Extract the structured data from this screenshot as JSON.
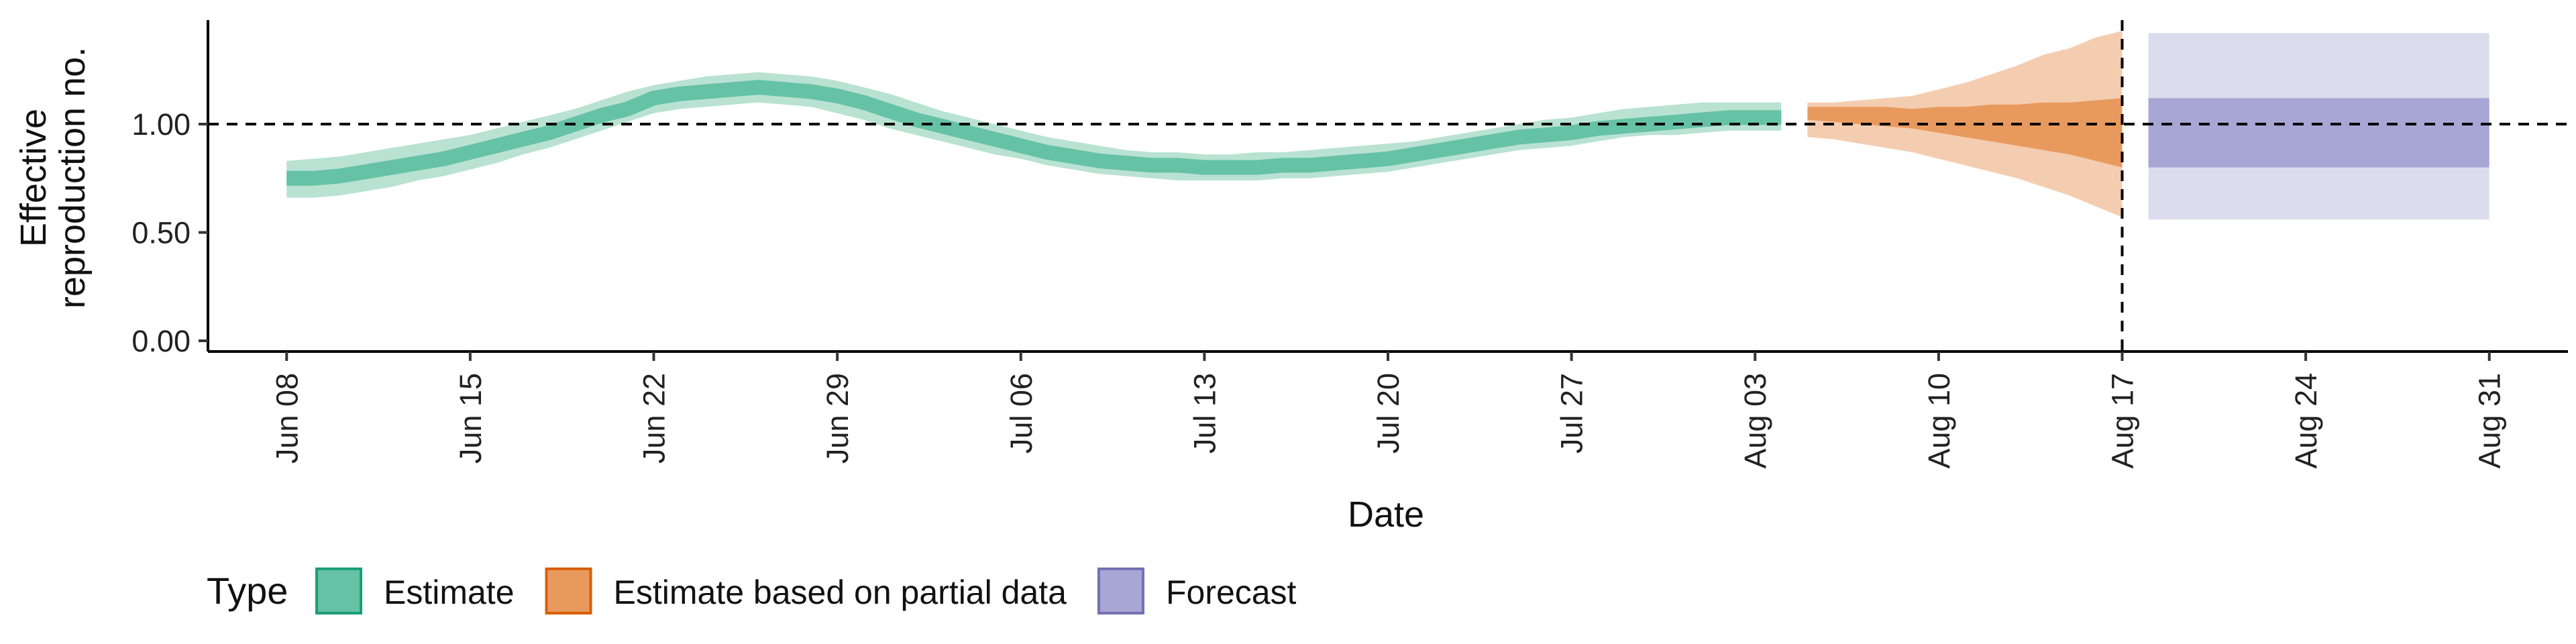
{
  "chart_data": {
    "type": "area",
    "xlabel": "Date",
    "ylabel_lines": [
      "Effective",
      "reproduction no."
    ],
    "ylim": [
      0,
      1.5
    ],
    "yticks": [
      0.0,
      0.5,
      1.0
    ],
    "ytick_labels": [
      "0.00",
      "0.50",
      "1.00"
    ],
    "xlim": [
      "2020-06-05",
      "2020-09-03"
    ],
    "xticks": [
      "2020-06-08",
      "2020-06-15",
      "2020-06-22",
      "2020-06-29",
      "2020-07-06",
      "2020-07-13",
      "2020-07-20",
      "2020-07-27",
      "2020-08-03",
      "2020-08-10",
      "2020-08-17",
      "2020-08-24",
      "2020-08-31"
    ],
    "xtick_labels": [
      "Jun 08",
      "Jun 15",
      "Jun 22",
      "Jun 29",
      "Jul 06",
      "Jul 13",
      "Jul 20",
      "Jul 27",
      "Aug 03",
      "Aug 10",
      "Aug 17",
      "Aug 24",
      "Aug 31"
    ],
    "hline": 1.0,
    "vline": "2020-08-17",
    "legend": {
      "title": "Type",
      "position": "bottom-left",
      "entries": [
        {
          "label": "Estimate",
          "fill": "#66c2a5",
          "stroke": "#1b9e77"
        },
        {
          "label": "Estimate based on partial data",
          "fill": "#e89a5e",
          "stroke": "#d95f02"
        },
        {
          "label": "Forecast",
          "fill": "#a8a6d4",
          "stroke": "#7570b3"
        }
      ]
    },
    "series": [
      {
        "type": "Estimate",
        "color_outer": "#b9e2d3",
        "color_inner": "#66c2a5",
        "color_median": "#66c2a5",
        "x": [
          "2020-06-08",
          "2020-06-09",
          "2020-06-10",
          "2020-06-11",
          "2020-06-12",
          "2020-06-13",
          "2020-06-14",
          "2020-06-15",
          "2020-06-16",
          "2020-06-17",
          "2020-06-18",
          "2020-06-19",
          "2020-06-20",
          "2020-06-21",
          "2020-06-22",
          "2020-06-23",
          "2020-06-24",
          "2020-06-25",
          "2020-06-26",
          "2020-06-27",
          "2020-06-28",
          "2020-06-29",
          "2020-06-30",
          "2020-07-01",
          "2020-07-02",
          "2020-07-03",
          "2020-07-04",
          "2020-07-05",
          "2020-07-06",
          "2020-07-07",
          "2020-07-08",
          "2020-07-09",
          "2020-07-10",
          "2020-07-11",
          "2020-07-12",
          "2020-07-13",
          "2020-07-14",
          "2020-07-15",
          "2020-07-16",
          "2020-07-17",
          "2020-07-18",
          "2020-07-19",
          "2020-07-20",
          "2020-07-21",
          "2020-07-22",
          "2020-07-23",
          "2020-07-24",
          "2020-07-25",
          "2020-07-26",
          "2020-07-27",
          "2020-07-28",
          "2020-07-29",
          "2020-07-30",
          "2020-07-31",
          "2020-08-01",
          "2020-08-02",
          "2020-08-03",
          "2020-08-04"
        ],
        "median": [
          0.75,
          0.75,
          0.76,
          0.78,
          0.8,
          0.82,
          0.84,
          0.87,
          0.9,
          0.93,
          0.96,
          1.0,
          1.04,
          1.07,
          1.12,
          1.14,
          1.15,
          1.16,
          1.17,
          1.16,
          1.15,
          1.13,
          1.1,
          1.06,
          1.02,
          0.99,
          0.96,
          0.93,
          0.9,
          0.87,
          0.85,
          0.83,
          0.82,
          0.81,
          0.81,
          0.8,
          0.8,
          0.8,
          0.81,
          0.81,
          0.82,
          0.83,
          0.84,
          0.86,
          0.88,
          0.9,
          0.92,
          0.94,
          0.95,
          0.96,
          0.98,
          0.99,
          1.0,
          1.01,
          1.02,
          1.03,
          1.03,
          1.03
        ],
        "lower90": [
          0.66,
          0.66,
          0.67,
          0.69,
          0.71,
          0.74,
          0.76,
          0.79,
          0.82,
          0.86,
          0.89,
          0.93,
          0.97,
          1.01,
          1.05,
          1.07,
          1.08,
          1.09,
          1.1,
          1.09,
          1.08,
          1.05,
          1.02,
          0.98,
          0.95,
          0.92,
          0.89,
          0.86,
          0.84,
          0.81,
          0.79,
          0.77,
          0.76,
          0.75,
          0.74,
          0.74,
          0.74,
          0.74,
          0.75,
          0.75,
          0.76,
          0.77,
          0.78,
          0.8,
          0.82,
          0.84,
          0.86,
          0.88,
          0.89,
          0.9,
          0.92,
          0.94,
          0.95,
          0.95,
          0.96,
          0.97,
          0.97,
          0.97
        ],
        "upper90": [
          0.83,
          0.84,
          0.85,
          0.87,
          0.89,
          0.91,
          0.93,
          0.95,
          0.98,
          1.01,
          1.04,
          1.07,
          1.11,
          1.15,
          1.18,
          1.2,
          1.22,
          1.23,
          1.24,
          1.23,
          1.22,
          1.2,
          1.17,
          1.14,
          1.1,
          1.06,
          1.03,
          1.0,
          0.97,
          0.94,
          0.92,
          0.9,
          0.88,
          0.87,
          0.87,
          0.86,
          0.86,
          0.87,
          0.87,
          0.88,
          0.89,
          0.9,
          0.91,
          0.92,
          0.94,
          0.96,
          0.98,
          1.0,
          1.02,
          1.03,
          1.05,
          1.07,
          1.08,
          1.09,
          1.1,
          1.1,
          1.1,
          1.1
        ],
        "lower50": [
          0.72,
          0.72,
          0.73,
          0.75,
          0.77,
          0.79,
          0.81,
          0.84,
          0.87,
          0.9,
          0.93,
          0.97,
          1.01,
          1.05,
          1.09,
          1.11,
          1.12,
          1.13,
          1.14,
          1.13,
          1.12,
          1.1,
          1.07,
          1.03,
          0.99,
          0.96,
          0.93,
          0.9,
          0.87,
          0.85,
          0.82,
          0.81,
          0.79,
          0.78,
          0.78,
          0.77,
          0.77,
          0.78,
          0.78,
          0.79,
          0.79,
          0.8,
          0.81,
          0.83,
          0.85,
          0.87,
          0.89,
          0.91,
          0.92,
          0.93,
          0.95,
          0.97,
          0.98,
          0.98,
          0.99,
          1.0,
          1.0,
          1.0
        ],
        "upper50": [
          0.78,
          0.78,
          0.79,
          0.81,
          0.83,
          0.85,
          0.87,
          0.9,
          0.93,
          0.96,
          0.99,
          1.03,
          1.07,
          1.1,
          1.15,
          1.17,
          1.18,
          1.19,
          1.2,
          1.19,
          1.18,
          1.16,
          1.13,
          1.09,
          1.05,
          1.02,
          0.99,
          0.96,
          0.93,
          0.9,
          0.88,
          0.86,
          0.85,
          0.84,
          0.84,
          0.83,
          0.83,
          0.83,
          0.84,
          0.84,
          0.85,
          0.86,
          0.87,
          0.89,
          0.91,
          0.93,
          0.95,
          0.97,
          0.98,
          0.99,
          1.01,
          1.02,
          1.03,
          1.04,
          1.05,
          1.06,
          1.06,
          1.06
        ]
      },
      {
        "type": "Estimate based on partial data",
        "color_outer": "#f4cdb0",
        "color_inner": "#e89a5e",
        "x": [
          "2020-08-05",
          "2020-08-06",
          "2020-08-07",
          "2020-08-08",
          "2020-08-09",
          "2020-08-10",
          "2020-08-11",
          "2020-08-12",
          "2020-08-13",
          "2020-08-14",
          "2020-08-15",
          "2020-08-16",
          "2020-08-17"
        ],
        "lower90": [
          0.94,
          0.93,
          0.91,
          0.89,
          0.87,
          0.84,
          0.81,
          0.78,
          0.75,
          0.71,
          0.67,
          0.62,
          0.57
        ],
        "upper90": [
          1.1,
          1.1,
          1.11,
          1.12,
          1.13,
          1.16,
          1.19,
          1.23,
          1.27,
          1.32,
          1.35,
          1.4,
          1.43
        ],
        "lower50": [
          1.02,
          1.01,
          1.0,
          0.99,
          0.98,
          0.96,
          0.94,
          0.92,
          0.9,
          0.88,
          0.86,
          0.83,
          0.8
        ],
        "upper50": [
          1.08,
          1.08,
          1.08,
          1.08,
          1.07,
          1.08,
          1.08,
          1.09,
          1.09,
          1.1,
          1.1,
          1.11,
          1.12
        ]
      },
      {
        "type": "Forecast",
        "color_outer": "#dddcee",
        "color_inner": "#a8a6d4",
        "x": [
          "2020-08-18",
          "2020-08-31"
        ],
        "lower90": [
          0.56,
          0.56
        ],
        "upper90": [
          1.42,
          1.42
        ],
        "lower50": [
          0.8,
          0.8
        ],
        "upper50": [
          1.12,
          1.12
        ]
      }
    ]
  }
}
